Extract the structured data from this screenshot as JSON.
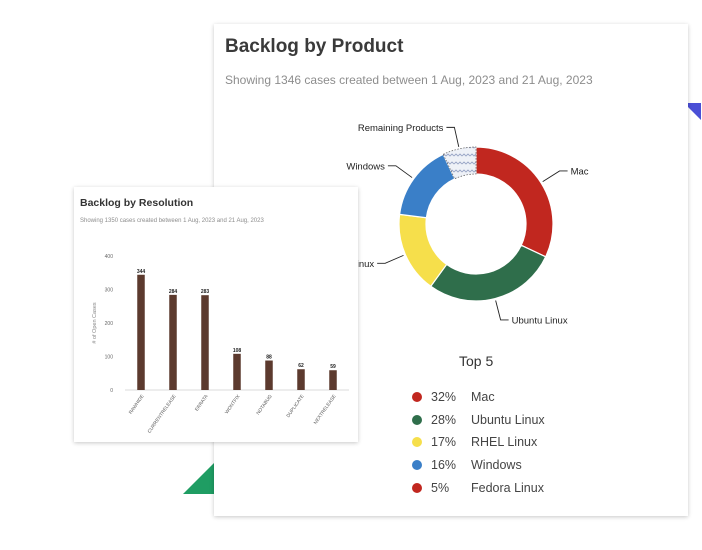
{
  "colors": {
    "mac": "#c1271f",
    "ubuntu": "#2f6e4b",
    "rhel": "#f6df4b",
    "windows": "#3a7fc8",
    "fedora": "#c1271f",
    "remaining": "#b9c4de",
    "bar": "#5c3a2e",
    "deco_blue": "#4a4fd6",
    "deco_green": "#1f9d63"
  },
  "product_card": {
    "title": "Backlog by Product",
    "subtitle": "Showing 1346 cases created between 1 Aug, 2023 and 21 Aug, 2023",
    "top5_title": "Top 5",
    "top5": [
      {
        "pct": "32%",
        "label": "Mac",
        "color": "#c1271f"
      },
      {
        "pct": "28%",
        "label": "Ubuntu Linux",
        "color": "#2f6e4b"
      },
      {
        "pct": "17%",
        "label": "RHEL Linux",
        "color": "#f6df4b"
      },
      {
        "pct": "16%",
        "label": "Windows",
        "color": "#3a7fc8"
      },
      {
        "pct": "5%",
        "label": "Fedora Linux",
        "color": "#c1271f"
      }
    ]
  },
  "resolution_card": {
    "title": "Backlog by Resolution",
    "subtitle": "Showing 1350 cases created between 1 Aug, 2023 and 21 Aug, 2023"
  },
  "chart_data": [
    {
      "type": "pie",
      "categories": [
        "Mac",
        "Ubuntu Linux",
        "Linux",
        "Windows",
        "Remaining Products"
      ],
      "values": [
        32,
        28,
        17,
        16,
        7
      ],
      "callout_labels": [
        "Mac",
        "Ubuntu Linux",
        "Linux",
        "Windows",
        "Remaining Products"
      ]
    },
    {
      "type": "bar",
      "title": "Backlog by Resolution",
      "ylabel": "# of Open Cases",
      "categories": [
        "RAWHIDE",
        "CURRENTRELEASE",
        "ERRATA",
        "WONTFIX",
        "NOTABUG",
        "DUPLICATE",
        "NEXTRELEASE"
      ],
      "values": [
        344,
        284,
        283,
        108,
        88,
        62,
        59
      ],
      "ylim": [
        0,
        400
      ],
      "yticks": [
        0,
        100,
        200,
        300,
        400
      ],
      "grid": false
    }
  ]
}
